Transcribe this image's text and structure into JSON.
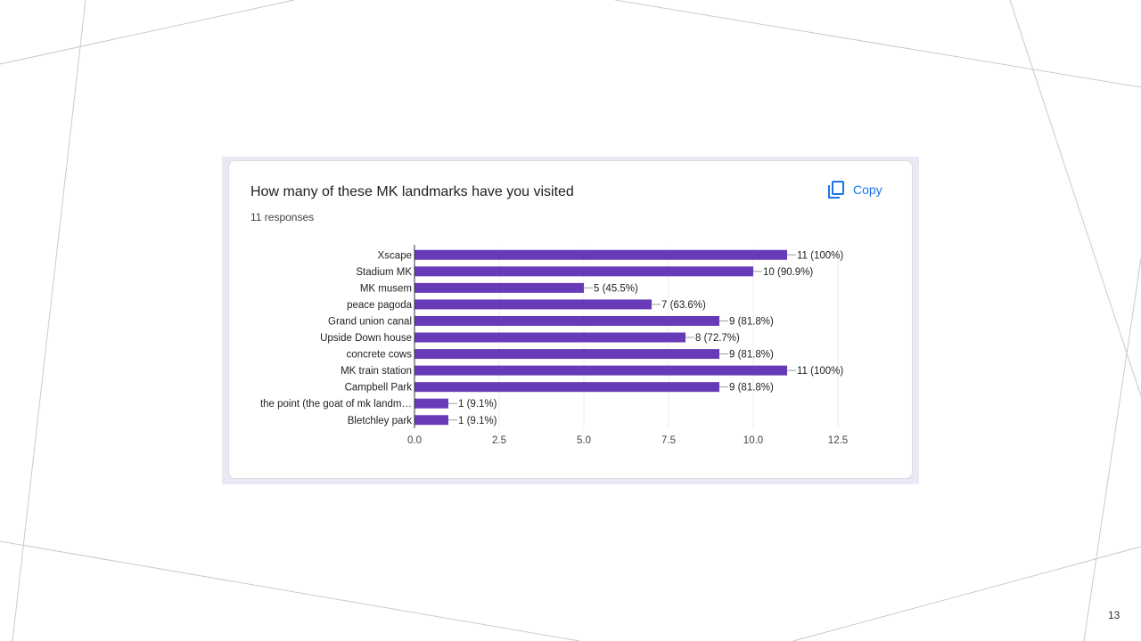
{
  "slide": {
    "page_number": "13"
  },
  "card": {
    "title": "How many of these MK landmarks have you visited",
    "responses": "11 responses",
    "copy_label": "Copy",
    "copy_icon": "copy-icon",
    "accent_color": "#1a73e8"
  },
  "chart_data": {
    "type": "bar",
    "orientation": "horizontal",
    "title": "How many of these MK landmarks have you visited",
    "xlabel": "",
    "ylabel": "",
    "xlim": [
      0,
      12.5
    ],
    "x_ticks": [
      "0.0",
      "2.5",
      "5.0",
      "7.5",
      "10.0",
      "12.5"
    ],
    "x_tick_values": [
      0,
      2.5,
      5,
      7.5,
      10,
      12.5
    ],
    "bar_color": "#673ab7",
    "categories": [
      "Xscape",
      "Stadium MK",
      "MK musem",
      "peace pagoda",
      "Grand union canal",
      "Upside Down house",
      "concrete cows",
      "MK train station",
      "Campbell Park",
      "the point (the goat of mk landm…",
      "Bletchley park"
    ],
    "values": [
      11,
      10,
      5,
      7,
      9,
      8,
      9,
      11,
      9,
      1,
      1
    ],
    "data_labels": [
      "11 (100%)",
      "10 (90.9%)",
      "5 (45.5%)",
      "7 (63.6%)",
      "9 (81.8%)",
      "8 (72.7%)",
      "9 (81.8%)",
      "11 (100%)",
      "9 (81.8%)",
      "1 (9.1%)",
      "1 (9.1%)"
    ]
  }
}
